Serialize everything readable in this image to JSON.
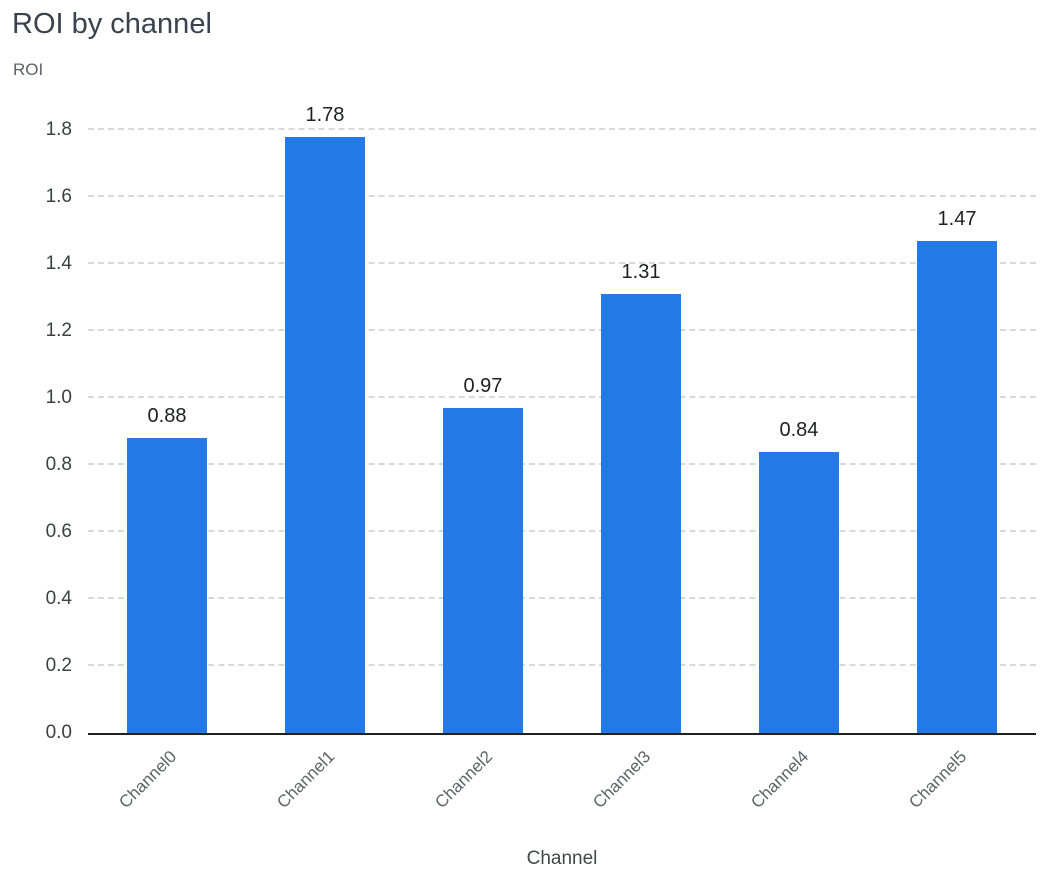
{
  "chart_data": {
    "type": "bar",
    "title": "ROI by channel",
    "ylabel": "ROI",
    "xlabel": "Channel",
    "categories": [
      "Channel0",
      "Channel1",
      "Channel2",
      "Channel3",
      "Channel4",
      "Channel5"
    ],
    "values": [
      0.88,
      1.78,
      0.97,
      1.31,
      0.84,
      1.47
    ],
    "value_labels": [
      "0.88",
      "1.78",
      "0.97",
      "1.31",
      "0.84",
      "1.47"
    ],
    "ylim": [
      0,
      1.8
    ],
    "yticks": [
      "0.0",
      "0.2",
      "0.4",
      "0.6",
      "0.8",
      "1.0",
      "1.2",
      "1.4",
      "1.6",
      "1.8"
    ],
    "grid": "horizontal-dashed",
    "legend": "none",
    "colors": {
      "bar": "#2379e6",
      "title": "#39434d",
      "axis_text": "#5f6368",
      "tick_text": "#3c4043",
      "value_label": "#202124",
      "gridline": "#d9d9d9",
      "axis_line": "#212121"
    }
  }
}
